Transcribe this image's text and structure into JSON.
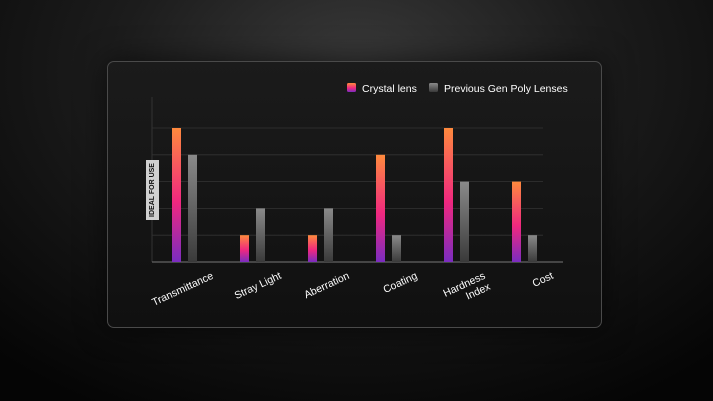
{
  "chart_data": {
    "type": "bar",
    "categories": [
      "Transmittance",
      "Stray Light",
      "Aberration",
      "Coating",
      "Hardness\nIndex",
      "Cost"
    ],
    "series": [
      {
        "name": "Crystal lens",
        "values": [
          5,
          1,
          1,
          4,
          5,
          3
        ]
      },
      {
        "name": "Previous Gen Poly Lenses",
        "values": [
          4,
          2,
          2,
          1,
          3,
          1
        ]
      }
    ],
    "ylabel": "IDEAL FOR USE",
    "ylim": [
      0,
      5
    ],
    "grid": true,
    "legend": "top-right"
  },
  "colors": {
    "crystal_top": "#ff8a3d",
    "crystal_mid": "#f0287f",
    "crystal_bottom": "#7a2cc0",
    "poly_top": "#8a8a8a",
    "poly_bottom": "#3a3a3a"
  }
}
